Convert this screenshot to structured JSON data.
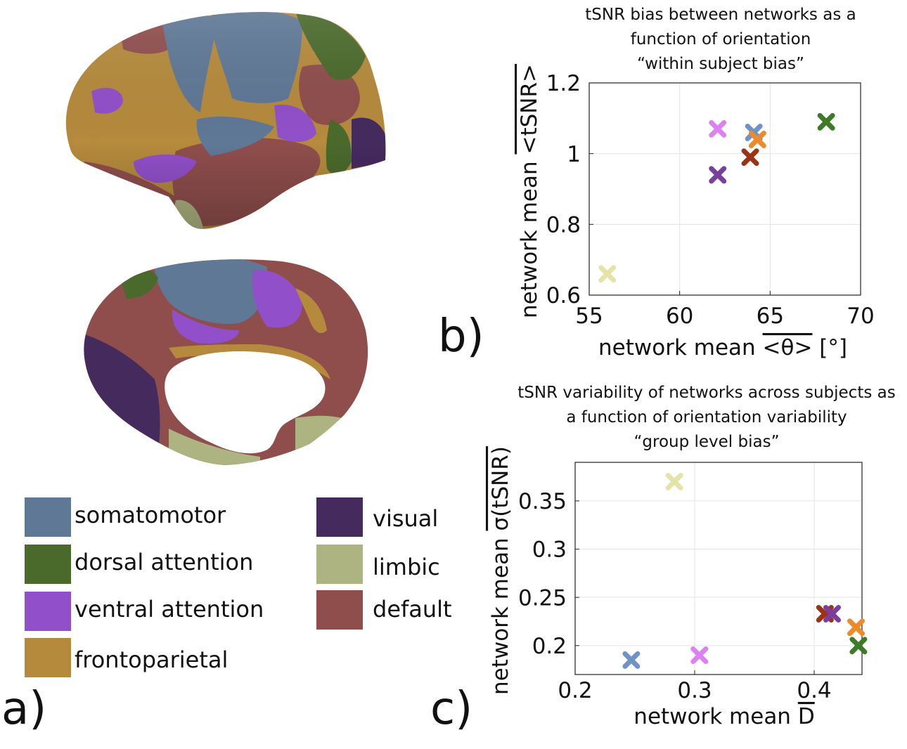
{
  "legend": {
    "items": [
      {
        "label": "somatomotor",
        "color": "#5f7896"
      },
      {
        "label": "dorsal attention",
        "color": "#4a6a2c"
      },
      {
        "label": "ventral attention",
        "color": "#9150c9"
      },
      {
        "label": "frontoparietal",
        "color": "#b58a3c"
      },
      {
        "label": "visual",
        "color": "#452a5e"
      },
      {
        "label": "limbic",
        "color": "#adb481"
      },
      {
        "label": "default",
        "color": "#8f4e4c"
      }
    ]
  },
  "panels": {
    "a": "a)",
    "b": "b)",
    "c": "c)"
  },
  "chart_data": [
    {
      "type": "scatter",
      "title_lines": [
        "tSNR bias between networks as a",
        "function of orientation",
        "“within subject bias”"
      ],
      "xlabel": "network mean <θ> [°]",
      "xlabel_prefix": "network mean ",
      "xlabel_overlined": "<θ>",
      "xlabel_suffix": " [°]",
      "ylabel": "network mean <tSNR>",
      "ylabel_prefix": "network mean ",
      "ylabel_overlined": "<tSNR>",
      "xlim": [
        55,
        70
      ],
      "ylim": [
        0.6,
        1.2
      ],
      "xticks": [
        55,
        60,
        65,
        70
      ],
      "xtick_labels": [
        "55",
        "60",
        "65",
        "70"
      ],
      "yticks": [
        0.6,
        0.8,
        1.0,
        1.2
      ],
      "ytick_labels": [
        "0.6",
        "0.8",
        "1",
        "1.2"
      ],
      "grid": true,
      "marker": "✖",
      "points": [
        {
          "network": "limbic",
          "x": 56.0,
          "y": 0.66,
          "color": "#e4e3a9"
        },
        {
          "network": "ventral attention",
          "x": 62.1,
          "y": 1.07,
          "color": "#dc82f0"
        },
        {
          "network": "visual",
          "x": 62.1,
          "y": 0.94,
          "color": "#7a3f9c"
        },
        {
          "network": "default",
          "x": 63.9,
          "y": 0.99,
          "color": "#9b3416"
        },
        {
          "network": "somatomotor",
          "x": 64.1,
          "y": 1.06,
          "color": "#6f93c4"
        },
        {
          "network": "frontoparietal",
          "x": 64.3,
          "y": 1.04,
          "color": "#ec8a2c"
        },
        {
          "network": "dorsal attention",
          "x": 68.1,
          "y": 1.09,
          "color": "#3f7a28"
        }
      ]
    },
    {
      "type": "scatter",
      "title_lines": [
        "tSNR variability of networks across subjects as",
        "a function of orientation variability",
        "“group level bias”"
      ],
      "xlabel": "network mean D",
      "xlabel_prefix": "network mean ",
      "xlabel_overlined": "D",
      "xlabel_suffix": "",
      "ylabel": "network mean σ(tSNR)",
      "ylabel_prefix": "network mean ",
      "ylabel_overlined": "σ(tSNR)",
      "xlim": [
        0.2,
        0.44
      ],
      "ylim": [
        0.17,
        0.39
      ],
      "xticks": [
        0.2,
        0.3,
        0.4
      ],
      "xtick_labels": [
        "0.2",
        "0.3",
        "0.4"
      ],
      "yticks": [
        0.2,
        0.25,
        0.3,
        0.35
      ],
      "ytick_labels": [
        "0.2",
        "0.25",
        "0.3",
        "0.35"
      ],
      "grid": true,
      "marker": "✖",
      "points": [
        {
          "network": "limbic",
          "x": 0.283,
          "y": 0.37,
          "color": "#e4e3a9"
        },
        {
          "network": "somatomotor",
          "x": 0.247,
          "y": 0.185,
          "color": "#6f93c4"
        },
        {
          "network": "ventral attention",
          "x": 0.304,
          "y": 0.19,
          "color": "#dc82f0"
        },
        {
          "network": "default",
          "x": 0.409,
          "y": 0.233,
          "color": "#9b3416"
        },
        {
          "network": "visual",
          "x": 0.415,
          "y": 0.233,
          "color": "#7a3f9c"
        },
        {
          "network": "frontoparietal",
          "x": 0.435,
          "y": 0.219,
          "color": "#ec8a2c"
        },
        {
          "network": "dorsal attention",
          "x": 0.437,
          "y": 0.2,
          "color": "#3f7a28"
        }
      ]
    }
  ]
}
